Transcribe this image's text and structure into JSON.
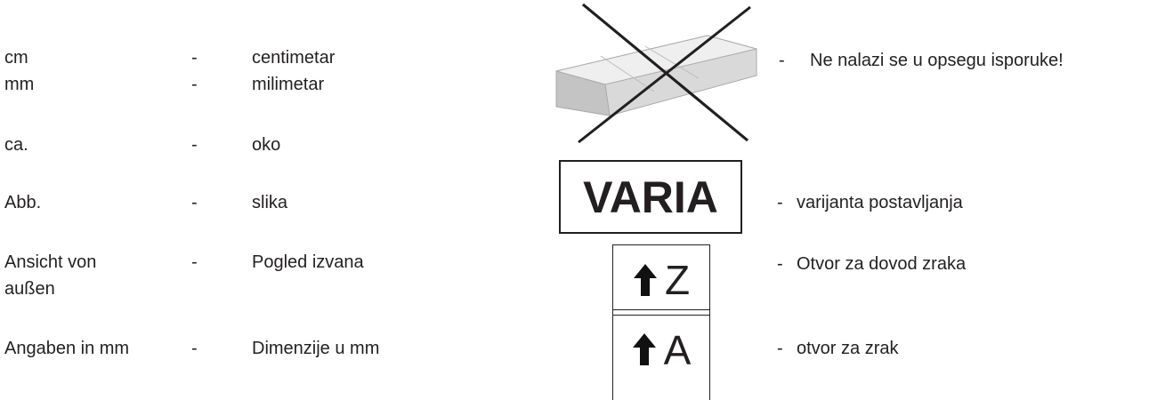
{
  "separator": "-",
  "abbreviations": [
    {
      "term": "cm",
      "meaning": "centimetar"
    },
    {
      "term": "mm",
      "meaning": "milimetar"
    },
    {
      "term": "ca.",
      "meaning": "oko"
    },
    {
      "term": "Abb.",
      "meaning": "slika"
    },
    {
      "term": "Ansicht von außen",
      "meaning": "Pogled izvana"
    },
    {
      "term": "Angaben in mm",
      "meaning": "Dimenzije u mm"
    }
  ],
  "symbols": [
    {
      "description": "Ne nalazi se u opsegu isporuke!"
    },
    {
      "label": "VARIA",
      "description": "varijanta postavljanja"
    },
    {
      "label": "Z",
      "description": "Otvor za dovod zraka"
    },
    {
      "label": "A",
      "description": "otvor za zrak"
    }
  ]
}
